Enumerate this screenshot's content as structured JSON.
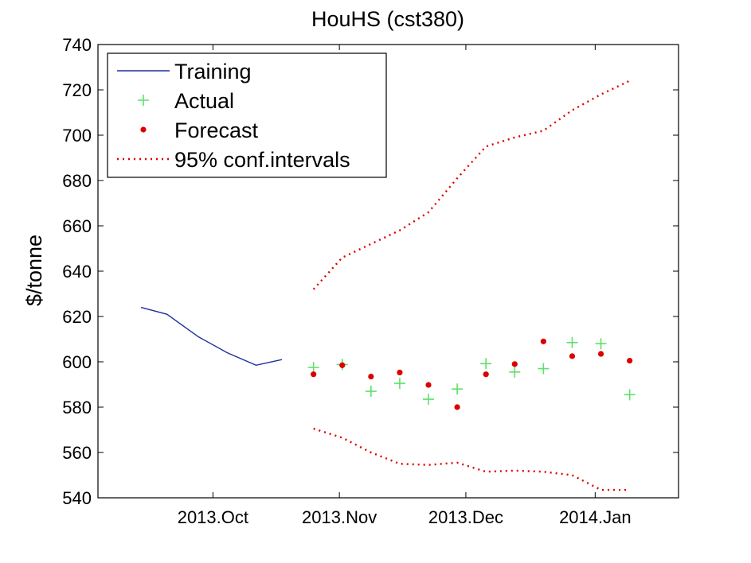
{
  "chart_data": {
    "type": "line",
    "title": "HouHS (cst380)",
    "xlabel": "",
    "ylabel": "$/tonne",
    "ylim": [
      540,
      740
    ],
    "yticks": [
      540,
      560,
      580,
      600,
      620,
      640,
      660,
      680,
      700,
      720,
      740
    ],
    "xlim": [
      0,
      20.2
    ],
    "xticks": [
      {
        "label": "2013.Oct",
        "x": 4.0
      },
      {
        "label": "2013.Nov",
        "x": 8.4
      },
      {
        "label": "2013.Dec",
        "x": 12.8
      },
      {
        "label": "2014.Jan",
        "x": 17.3
      }
    ],
    "grid": false,
    "legend_position": "top-left",
    "series": [
      {
        "name": "Training",
        "style": "line",
        "color": "#1f2f9e",
        "x": [
          1.5,
          2.4,
          3.5,
          4.5,
          5.5,
          6.4
        ],
        "values": [
          624,
          621,
          611,
          604,
          598.5,
          601
        ]
      },
      {
        "name": "Actual",
        "style": "plus",
        "color": "#5fe06a",
        "x": [
          7.5,
          8.5,
          9.5,
          10.5,
          11.5,
          12.5,
          13.5,
          14.5,
          15.5,
          16.5,
          17.5,
          18.5
        ],
        "values": [
          597.5,
          598.8,
          587,
          590.5,
          583.5,
          588,
          599.2,
          595.5,
          597,
          608.5,
          608,
          585.5
        ]
      },
      {
        "name": "Forecast",
        "style": "dot",
        "color": "#dd0000",
        "x": [
          7.5,
          8.5,
          9.5,
          10.5,
          11.5,
          12.5,
          13.5,
          14.5,
          15.5,
          16.5,
          17.5,
          18.5
        ],
        "values": [
          594.5,
          598.5,
          593.5,
          595.3,
          589.8,
          580,
          594.5,
          599,
          609,
          602.5,
          603.5,
          600.5
        ]
      },
      {
        "name": "95% conf.intervals",
        "style": "dotted",
        "color": "#dd0000",
        "x": [
          7.5,
          8.5,
          9.5,
          10.5,
          11.5,
          12.5,
          13.5,
          14.5,
          15.5,
          16.5,
          17.5,
          18.5
        ],
        "upper": [
          632,
          646,
          652,
          658,
          666,
          681,
          695,
          699,
          702,
          711,
          718,
          724
        ],
        "lower": [
          570.5,
          566.5,
          560,
          555,
          554.5,
          555.5,
          551.5,
          552,
          551.5,
          550,
          543.5,
          543.5
        ]
      }
    ]
  }
}
